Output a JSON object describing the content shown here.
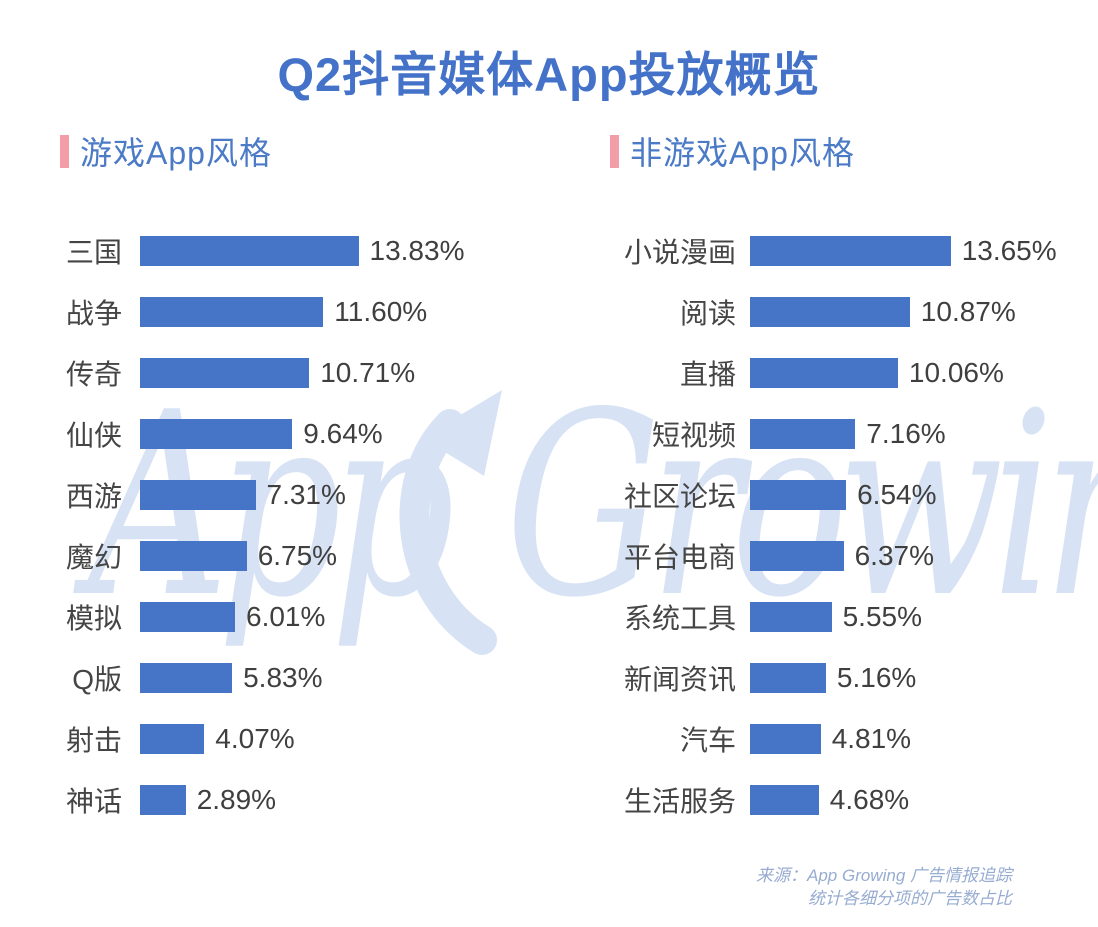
{
  "page_title": "Q2抖音媒体App投放概览",
  "watermark": {
    "word1": "App",
    "word2": "Growing",
    "icon": "arrow-up-right-swoosh"
  },
  "source": {
    "line1": "来源：App Growing 广告情报追踪",
    "line2": "统计各细分项的广告数占比"
  },
  "colors": {
    "bar": "#4674C6",
    "title": "#4372C8",
    "header": "#4B7AC6",
    "accent_pink": "#F29DA8",
    "label_text": "#454545",
    "value_text": "#3F3F3F",
    "watermark": "#D7E3F4",
    "source_text": "#97ACD1"
  },
  "chart_data": [
    {
      "type": "bar",
      "orientation": "horizontal",
      "section_title": "游戏App风格",
      "unit": "%",
      "value_format": "2 decimals + %",
      "xlim": [
        0,
        14.5
      ],
      "grid": false,
      "legend": "none",
      "categories": [
        "三国",
        "战争",
        "传奇",
        "仙侠",
        "西游",
        "魔幻",
        "模拟",
        "Q版",
        "射击",
        "神话"
      ],
      "values": [
        13.83,
        11.6,
        10.71,
        9.64,
        7.31,
        6.75,
        6.01,
        5.83,
        4.07,
        2.89
      ]
    },
    {
      "type": "bar",
      "orientation": "horizontal",
      "section_title": "非游戏App风格",
      "unit": "%",
      "value_format": "2 decimals + %",
      "xlim": [
        0,
        14.5
      ],
      "grid": false,
      "legend": "none",
      "categories": [
        "小说漫画",
        "阅读",
        "直播",
        "短视频",
        "社区论坛",
        "平台电商",
        "系统工具",
        "新闻资讯",
        "汽车",
        "生活服务"
      ],
      "values": [
        13.65,
        10.87,
        10.06,
        7.16,
        6.54,
        6.37,
        5.55,
        5.16,
        4.81,
        4.68
      ]
    }
  ]
}
